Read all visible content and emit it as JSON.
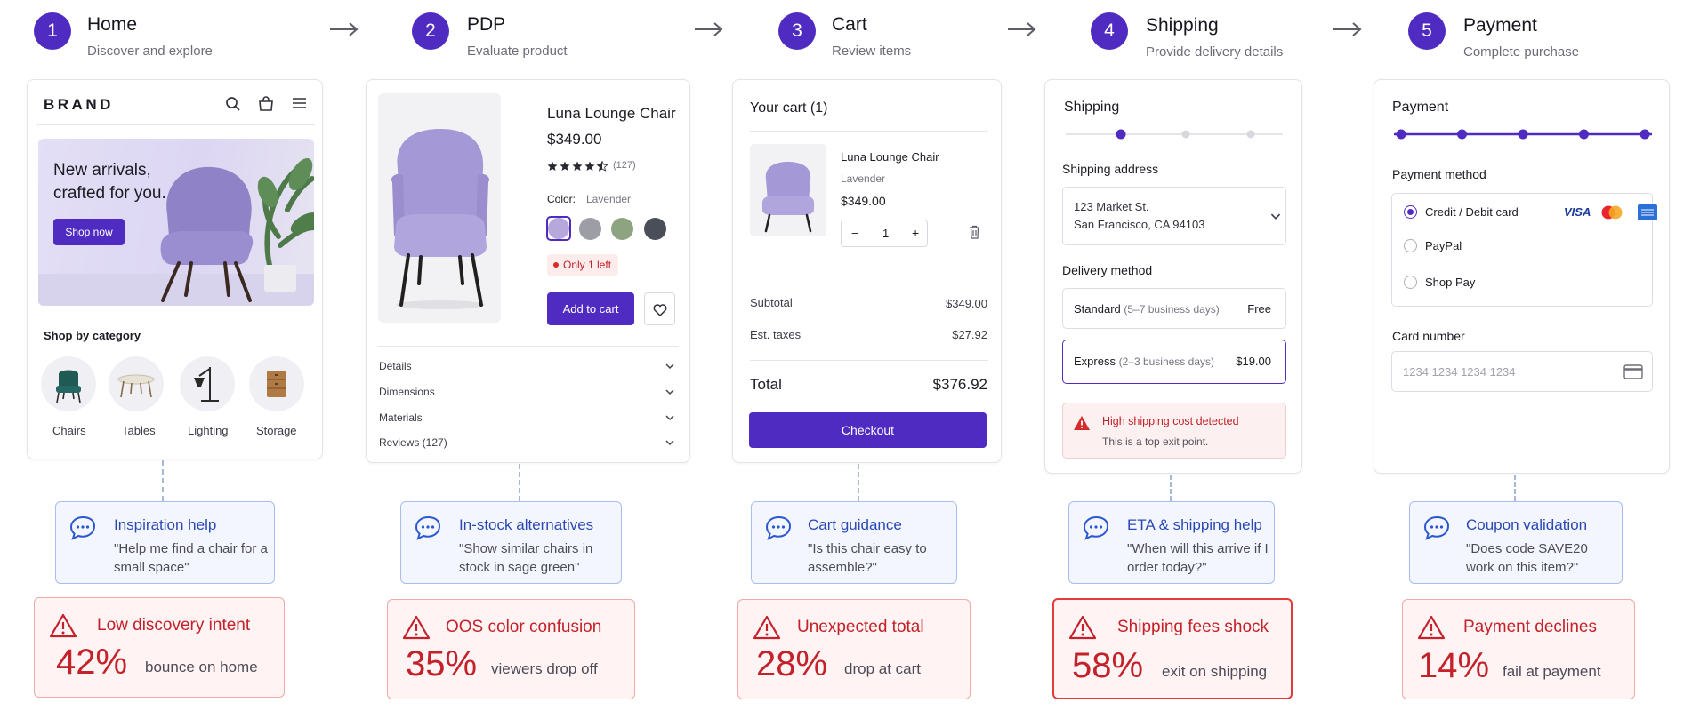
{
  "steps": [
    {
      "num": "1",
      "title": "Home",
      "subtitle": "Discover and explore"
    },
    {
      "num": "2",
      "title": "PDP",
      "subtitle": "Evaluate product"
    },
    {
      "num": "3",
      "title": "Cart",
      "subtitle": "Review items"
    },
    {
      "num": "4",
      "title": "Shipping",
      "subtitle": "Provide delivery details"
    },
    {
      "num": "5",
      "title": "Payment",
      "subtitle": "Complete purchase"
    }
  ],
  "home": {
    "brand": "BRAND",
    "hero_line1": "New arrivals,",
    "hero_line2": "crafted for you.",
    "hero_button": "Shop now",
    "category_heading": "Shop by category",
    "categories": [
      {
        "label": "Chairs"
      },
      {
        "label": "Tables"
      },
      {
        "label": "Lighting"
      },
      {
        "label": "Storage"
      }
    ]
  },
  "pdp": {
    "product_name": "Luna Lounge Chair",
    "price": "$349.00",
    "rating_stars": 4.5,
    "review_count": "(127)",
    "color_label": "Color:",
    "color_value": "Lavender",
    "swatches": [
      "#b7a8dc",
      "#9d9ea5",
      "#8ea37f",
      "#4a4e59"
    ],
    "stock_alert": "Only 1 left",
    "add_to_cart": "Add to cart",
    "accordions": [
      {
        "label": "Details"
      },
      {
        "label": "Dimensions"
      },
      {
        "label": "Materials"
      },
      {
        "label": "Reviews (127)"
      }
    ]
  },
  "cart": {
    "title": "Your cart (1)",
    "item_name": "Luna Lounge Chair",
    "item_variant": "Lavender",
    "item_price": "$349.00",
    "qty_minus": "−",
    "qty_value": "1",
    "qty_plus": "+",
    "subtotal_label": "Subtotal",
    "subtotal_value": "$349.00",
    "taxes_label": "Est. taxes",
    "taxes_value": "$27.92",
    "total_label": "Total",
    "total_value": "$376.92",
    "checkout": "Checkout"
  },
  "shipping": {
    "title": "Shipping",
    "progress_steps": 4,
    "progress_active": 1,
    "address_heading": "Shipping address",
    "address_line1": "123 Market St.",
    "address_line2": "San Francisco, CA 94103",
    "delivery_heading": "Delivery method",
    "standard_label": "Standard",
    "standard_eta": "(5–7 business days)",
    "standard_price": "Free",
    "express_label": "Express",
    "express_eta": "(2–3 business days)",
    "express_price": "$19.00",
    "alert_title": "High shipping cost detected",
    "alert_text": "This is a top exit point."
  },
  "payment": {
    "title": "Payment",
    "progress_steps": 5,
    "method_heading": "Payment method",
    "methods": [
      {
        "label": "Credit / Debit card"
      },
      {
        "label": "PayPal"
      },
      {
        "label": "Shop Pay"
      }
    ],
    "card_logos": {
      "visa": "VISA"
    },
    "card_heading": "Card number",
    "card_placeholder": "1234 1234 1234 1234"
  },
  "assist": [
    {
      "title": "Inspiration help",
      "quote": "\"Help me find a chair for a small space\""
    },
    {
      "title": "In-stock alternatives",
      "quote": "\"Show similar chairs in stock in sage green\""
    },
    {
      "title": "Cart guidance",
      "quote": "\"Is this chair easy to assemble?\""
    },
    {
      "title": "ETA & shipping help",
      "quote": "\"When will this arrive if I order today?\""
    },
    {
      "title": "Coupon validation",
      "quote": "\"Does code SAVE20 work on this item?\""
    }
  ],
  "dropoffs": [
    {
      "title": "Low discovery intent",
      "pct": "42%",
      "desc": "bounce on home"
    },
    {
      "title": "OOS color confusion",
      "pct": "35%",
      "desc": "viewers drop off"
    },
    {
      "title": "Unexpected total",
      "pct": "28%",
      "desc": "drop at cart"
    },
    {
      "title": "Shipping fees shock",
      "pct": "58%",
      "desc": "exit on shipping"
    },
    {
      "title": "Payment declines",
      "pct": "14%",
      "desc": "fail at payment"
    }
  ],
  "colors": {
    "accent": "#4f2bc2",
    "danger": "#c3222a",
    "assist": "#2b49b5"
  }
}
